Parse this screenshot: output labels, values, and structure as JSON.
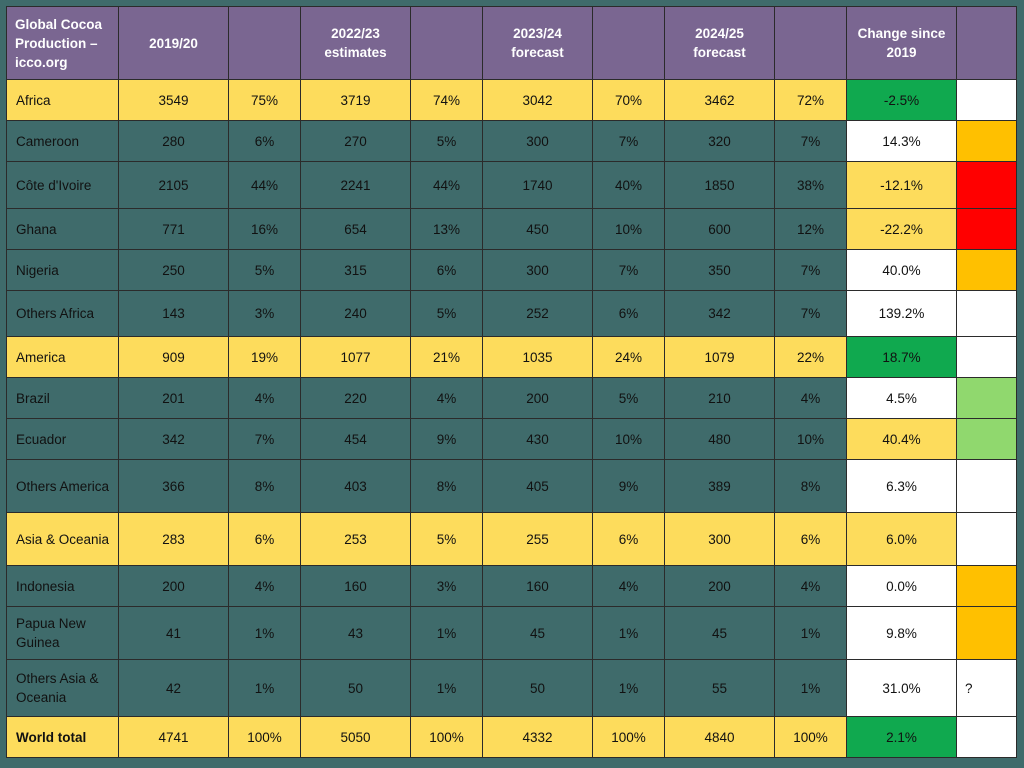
{
  "chart_data": {
    "type": "table",
    "title": "Global Cocoa Production – icco.org",
    "columns": [
      "Global Cocoa Production – icco.org",
      "2019/20",
      "",
      "2022/23 estimates",
      "",
      "2023/24 forecast",
      "",
      "2024/25 forecast",
      "",
      "Change since 2019",
      ""
    ],
    "rows": [
      {
        "label": "Africa",
        "kind": "region",
        "v1": "3549",
        "p1": "75%",
        "v2": "3719",
        "p2": "74%",
        "v3": "3042",
        "p3": "70%",
        "v4": "3462",
        "p4": "72%",
        "change": "-2.5%",
        "change_color": "#10a94f",
        "flag_color": "#ffffff",
        "note": ""
      },
      {
        "label": "Cameroon",
        "kind": "country",
        "v1": "280",
        "p1": "6%",
        "v2": "270",
        "p2": "5%",
        "v3": "300",
        "p3": "7%",
        "v4": "320",
        "p4": "7%",
        "change": "14.3%",
        "change_color": "#ffffff",
        "flag_color": "#ffc000",
        "note": ""
      },
      {
        "label": "Côte d'Ivoire",
        "kind": "country",
        "v1": "2105",
        "p1": "44%",
        "v2": "2241",
        "p2": "44%",
        "v3": "1740",
        "p3": "40%",
        "v4": "1850",
        "p4": "38%",
        "change": "-12.1%",
        "change_color": "#fddc5c",
        "flag_color": "#ff0000",
        "note": ""
      },
      {
        "label": "Ghana",
        "kind": "country",
        "v1": "771",
        "p1": "16%",
        "v2": "654",
        "p2": "13%",
        "v3": "450",
        "p3": "10%",
        "v4": "600",
        "p4": "12%",
        "change": "-22.2%",
        "change_color": "#fddc5c",
        "flag_color": "#ff0000",
        "note": ""
      },
      {
        "label": "Nigeria",
        "kind": "country",
        "v1": "250",
        "p1": "5%",
        "v2": "315",
        "p2": "6%",
        "v3": "300",
        "p3": "7%",
        "v4": "350",
        "p4": "7%",
        "change": "40.0%",
        "change_color": "#ffffff",
        "flag_color": "#ffc000",
        "note": ""
      },
      {
        "label": "Others Africa",
        "kind": "country",
        "v1": "143",
        "p1": "3%",
        "v2": "240",
        "p2": "5%",
        "v3": "252",
        "p3": "6%",
        "v4": "342",
        "p4": "7%",
        "change": "139.2%",
        "change_color": "#ffffff",
        "flag_color": "#ffffff",
        "note": ""
      },
      {
        "label": "America",
        "kind": "region",
        "v1": "909",
        "p1": "19%",
        "v2": "1077",
        "p2": "21%",
        "v3": "1035",
        "p3": "24%",
        "v4": "1079",
        "p4": "22%",
        "change": "18.7%",
        "change_color": "#10a94f",
        "flag_color": "#ffffff",
        "note": ""
      },
      {
        "label": "Brazil",
        "kind": "country",
        "v1": "201",
        "p1": "4%",
        "v2": "220",
        "p2": "4%",
        "v3": "200",
        "p3": "5%",
        "v4": "210",
        "p4": "4%",
        "change": "4.5%",
        "change_color": "#ffffff",
        "flag_color": "#90d86e",
        "note": ""
      },
      {
        "label": "Ecuador",
        "kind": "country",
        "v1": "342",
        "p1": "7%",
        "v2": "454",
        "p2": "9%",
        "v3": "430",
        "p3": "10%",
        "v4": "480",
        "p4": "10%",
        "change": "40.4%",
        "change_color": "#fddc5c",
        "flag_color": "#90d86e",
        "note": ""
      },
      {
        "label": "Others America",
        "kind": "country",
        "v1": "366",
        "p1": "8%",
        "v2": "403",
        "p2": "8%",
        "v3": "405",
        "p3": "9%",
        "v4": "389",
        "p4": "8%",
        "change": "6.3%",
        "change_color": "#ffffff",
        "flag_color": "#ffffff",
        "note": ""
      },
      {
        "label": "Asia & Oceania",
        "kind": "region",
        "v1": "283",
        "p1": "6%",
        "v2": "253",
        "p2": "5%",
        "v3": "255",
        "p3": "6%",
        "v4": "300",
        "p4": "6%",
        "change": "6.0%",
        "change_color": "#fddc5c",
        "flag_color": "#ffffff",
        "note": ""
      },
      {
        "label": "Indonesia",
        "kind": "country",
        "v1": "200",
        "p1": "4%",
        "v2": "160",
        "p2": "3%",
        "v3": "160",
        "p3": "4%",
        "v4": "200",
        "p4": "4%",
        "change": "0.0%",
        "change_color": "#ffffff",
        "flag_color": "#ffc000",
        "note": ""
      },
      {
        "label": "Papua New Guinea",
        "kind": "country",
        "v1": "41",
        "p1": "1%",
        "v2": "43",
        "p2": "1%",
        "v3": "45",
        "p3": "1%",
        "v4": "45",
        "p4": "1%",
        "change": "9.8%",
        "change_color": "#ffffff",
        "flag_color": "#ffc000",
        "note": ""
      },
      {
        "label": "Others Asia & Oceania",
        "kind": "country",
        "v1": "42",
        "p1": "1%",
        "v2": "50",
        "p2": "1%",
        "v3": "50",
        "p3": "1%",
        "v4": "55",
        "p4": "1%",
        "change": "31.0%",
        "change_color": "#ffffff",
        "flag_color": "#ffffff",
        "note": "?"
      },
      {
        "label": "World total",
        "kind": "total",
        "v1": "4741",
        "p1": "100%",
        "v2": "5050",
        "p2": "100%",
        "v3": "4332",
        "p3": "100%",
        "v4": "4840",
        "p4": "100%",
        "change": "2.1%",
        "change_color": "#10a94f",
        "flag_color": "#ffffff",
        "note": ""
      }
    ]
  },
  "colors": {
    "header_bg": "#7a6691",
    "region_bg": "#fddc5c",
    "row_bg": "#ffffff",
    "page_bg": "#3f6b6b"
  }
}
